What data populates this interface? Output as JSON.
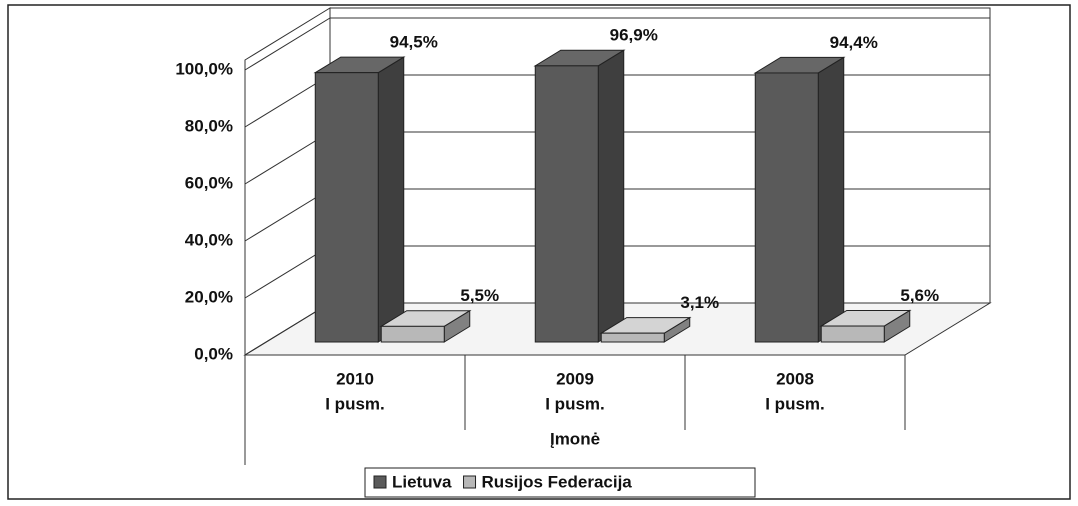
{
  "chart_data": {
    "type": "bar3d",
    "x_label": "Įmonė",
    "categories": [
      [
        "2010",
        "I pusm."
      ],
      [
        "2009",
        "I pusm."
      ],
      [
        "2008",
        "I pusm."
      ]
    ],
    "series": [
      {
        "name": "Lietuva",
        "color": "#5a5a5a",
        "values": [
          94.5,
          96.9,
          94.4
        ],
        "value_labels": [
          "94,5%",
          "96,9%",
          "94,4%"
        ]
      },
      {
        "name": "Rusijos Federacija",
        "color": "#b8b8b8",
        "values": [
          5.5,
          3.1,
          5.6
        ],
        "value_labels": [
          "5,5%",
          "3,1%",
          "5,6%"
        ]
      }
    ],
    "ylim": [
      0,
      100
    ],
    "yticks": [
      {
        "value": 0,
        "label": "0,0%"
      },
      {
        "value": 20,
        "label": "20,0%"
      },
      {
        "value": 40,
        "label": "40,0%"
      },
      {
        "value": 60,
        "label": "60,0%"
      },
      {
        "value": 80,
        "label": "80,0%"
      },
      {
        "value": 100,
        "label": "100,0%"
      }
    ],
    "grid": true,
    "legend": "bottom"
  }
}
